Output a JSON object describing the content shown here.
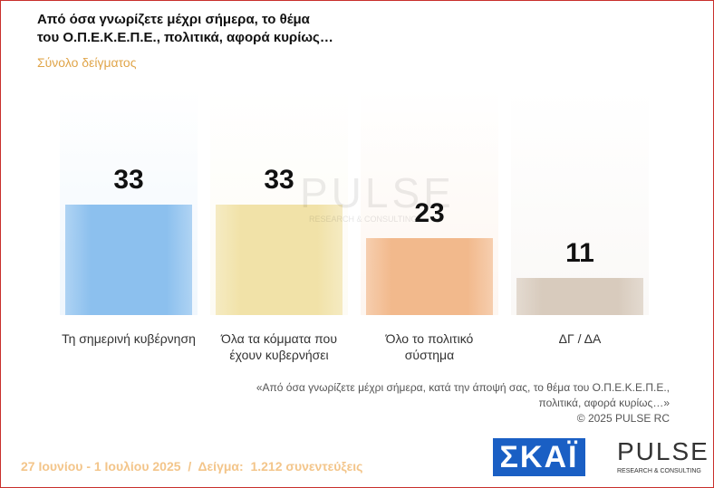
{
  "chart_data": {
    "type": "bar",
    "title_lines": [
      "Από όσα γνωρίζετε μέχρι σήμερα, το θέμα",
      "του  Ο.Π.Ε.Κ.Ε.Π.Ε.,  πολιτικά, αφορά κυρίως…"
    ],
    "subtitle": "Σύνολο δείγματος",
    "categories": [
      "Τη σημερινή κυβέρνηση",
      "Όλα τα κόμματα που έχουν κυβερνήσει",
      "Όλο το πολιτικό σύστημα",
      "ΔΓ / ΔΑ"
    ],
    "values": [
      33,
      33,
      23,
      11
    ],
    "colors": [
      "#8cc0ee",
      "#f1e2a8",
      "#f2b98c",
      "#d8cbbd"
    ],
    "watermark": [
      "PULSE",
      "RESEARCH & CONSULTING"
    ],
    "note_lines": [
      "«Από όσα γνωρίζετε μέχρι σήμερα, κατά την άποψή σας, το θέμα του Ο.Π.Ε.Κ.Ε.Π.Ε.,",
      "πολιτικά, αφορά κυρίως…»"
    ],
    "copyright": "©  2025  PULSE RC",
    "footer": "27 Ιουνίου - 1 Ιουλίου 2025  /  Δείγμα:  1.212 συνεντεύξεις",
    "logos": [
      "ΣΚΑΪ",
      "PULSE",
      "RESEARCH & CONSULTING"
    ]
  }
}
